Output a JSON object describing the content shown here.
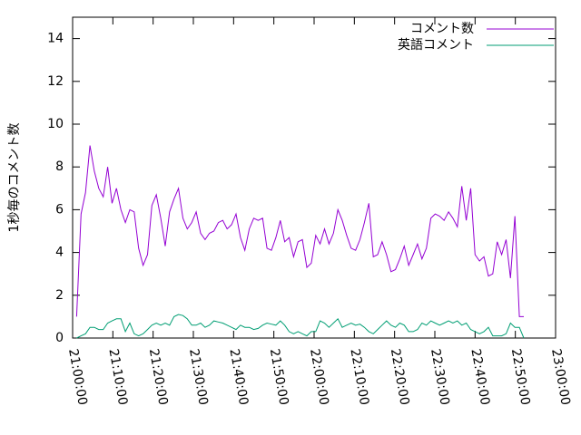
{
  "chart_data": {
    "type": "line",
    "ylabel": "1秒毎のコメント数",
    "x": [
      "21:01:00",
      "21:02:06",
      "21:03:12",
      "21:04:18",
      "21:05:24",
      "21:06:30",
      "21:07:36",
      "21:08:42",
      "21:09:48",
      "21:10:54",
      "21:12:00",
      "21:13:06",
      "21:14:12",
      "21:15:18",
      "21:16:24",
      "21:17:30",
      "21:18:36",
      "21:19:42",
      "21:20:48",
      "21:21:54",
      "21:23:00",
      "21:24:06",
      "21:25:12",
      "21:26:18",
      "21:27:24",
      "21:28:30",
      "21:29:36",
      "21:30:42",
      "21:31:48",
      "21:32:54",
      "21:34:00",
      "21:35:06",
      "21:36:12",
      "21:37:18",
      "21:38:24",
      "21:39:30",
      "21:40:36",
      "21:41:42",
      "21:42:48",
      "21:43:54",
      "21:45:00",
      "21:46:06",
      "21:47:12",
      "21:48:18",
      "21:49:24",
      "21:50:30",
      "21:51:36",
      "21:52:42",
      "21:53:48",
      "21:54:54",
      "21:56:00",
      "21:57:06",
      "21:58:12",
      "21:59:18",
      "22:00:24",
      "22:01:30",
      "22:02:36",
      "22:03:42",
      "22:04:48",
      "22:05:54",
      "22:07:00",
      "22:08:06",
      "22:09:12",
      "22:10:18",
      "22:11:24",
      "22:12:30",
      "22:13:36",
      "22:14:42",
      "22:15:48",
      "22:16:54",
      "22:18:00",
      "22:19:06",
      "22:20:12",
      "22:21:18",
      "22:22:24",
      "22:23:30",
      "22:24:36",
      "22:25:42",
      "22:26:48",
      "22:27:54",
      "22:29:00",
      "22:30:06",
      "22:31:12",
      "22:32:18",
      "22:33:24",
      "22:34:30",
      "22:35:36",
      "22:36:42",
      "22:37:48",
      "22:38:54",
      "22:40:00",
      "22:41:06",
      "22:42:12",
      "22:43:18",
      "22:44:24",
      "22:45:30",
      "22:46:36",
      "22:47:42",
      "22:48:48",
      "22:49:54",
      "22:51:00",
      "22:52:06"
    ],
    "series": [
      {
        "name": "コメント数",
        "color": "#9400d3",
        "values": [
          1.0,
          5.8,
          6.8,
          9.0,
          7.8,
          7.0,
          6.6,
          8.0,
          6.3,
          7.0,
          6.0,
          5.4,
          6.0,
          5.9,
          4.2,
          3.4,
          3.9,
          6.2,
          6.7,
          5.6,
          4.3,
          5.9,
          6.5,
          7.0,
          5.6,
          5.1,
          5.4,
          5.9,
          4.9,
          4.6,
          4.9,
          5.0,
          5.4,
          5.5,
          5.1,
          5.3,
          5.8,
          4.7,
          4.1,
          5.1,
          5.6,
          5.5,
          5.6,
          4.2,
          4.1,
          4.7,
          5.5,
          4.5,
          4.7,
          3.8,
          4.5,
          4.6,
          3.3,
          3.5,
          4.8,
          4.4,
          5.1,
          4.4,
          4.9,
          6.0,
          5.5,
          4.8,
          4.2,
          4.1,
          4.6,
          5.4,
          6.3,
          3.8,
          3.9,
          4.5,
          3.9,
          3.1,
          3.2,
          3.7,
          4.3,
          3.4,
          3.9,
          4.4,
          3.7,
          4.2,
          5.6,
          5.8,
          5.7,
          5.5,
          5.9,
          5.6,
          5.2,
          7.1,
          5.5,
          7.0,
          3.9,
          3.6,
          3.8,
          2.9,
          3.0,
          4.5,
          3.9,
          4.6,
          2.8,
          5.7,
          1.0,
          1.0
        ]
      },
      {
        "name": "英語コメント",
        "color": "#009e73",
        "values": [
          0.0,
          0.1,
          0.2,
          0.5,
          0.5,
          0.4,
          0.4,
          0.7,
          0.8,
          0.9,
          0.9,
          0.3,
          0.7,
          0.2,
          0.1,
          0.2,
          0.4,
          0.6,
          0.7,
          0.6,
          0.7,
          0.6,
          1.0,
          1.1,
          1.05,
          0.9,
          0.6,
          0.6,
          0.7,
          0.5,
          0.6,
          0.8,
          0.75,
          0.7,
          0.6,
          0.5,
          0.4,
          0.6,
          0.5,
          0.5,
          0.4,
          0.45,
          0.6,
          0.7,
          0.65,
          0.6,
          0.8,
          0.6,
          0.3,
          0.2,
          0.3,
          0.2,
          0.1,
          0.3,
          0.3,
          0.8,
          0.7,
          0.5,
          0.7,
          0.9,
          0.5,
          0.6,
          0.7,
          0.6,
          0.65,
          0.5,
          0.3,
          0.2,
          0.4,
          0.6,
          0.8,
          0.6,
          0.5,
          0.7,
          0.6,
          0.3,
          0.3,
          0.4,
          0.7,
          0.6,
          0.8,
          0.7,
          0.6,
          0.7,
          0.8,
          0.7,
          0.8,
          0.6,
          0.7,
          0.4,
          0.3,
          0.2,
          0.3,
          0.5,
          0.1,
          0.1,
          0.1,
          0.2,
          0.7,
          0.5,
          0.5,
          0.0
        ]
      }
    ],
    "xlim": [
      "21:00:00",
      "23:00:00"
    ],
    "xticks": [
      "21:00:00",
      "21:10:00",
      "21:20:00",
      "21:30:00",
      "21:40:00",
      "21:50:00",
      "22:00:00",
      "22:10:00",
      "22:20:00",
      "22:30:00",
      "22:40:00",
      "22:50:00",
      "23:00:00"
    ],
    "ylim": [
      0,
      15
    ],
    "yticks": [
      0,
      2,
      4,
      6,
      8,
      10,
      12,
      14
    ],
    "legend": "top-right",
    "grid": false
  }
}
